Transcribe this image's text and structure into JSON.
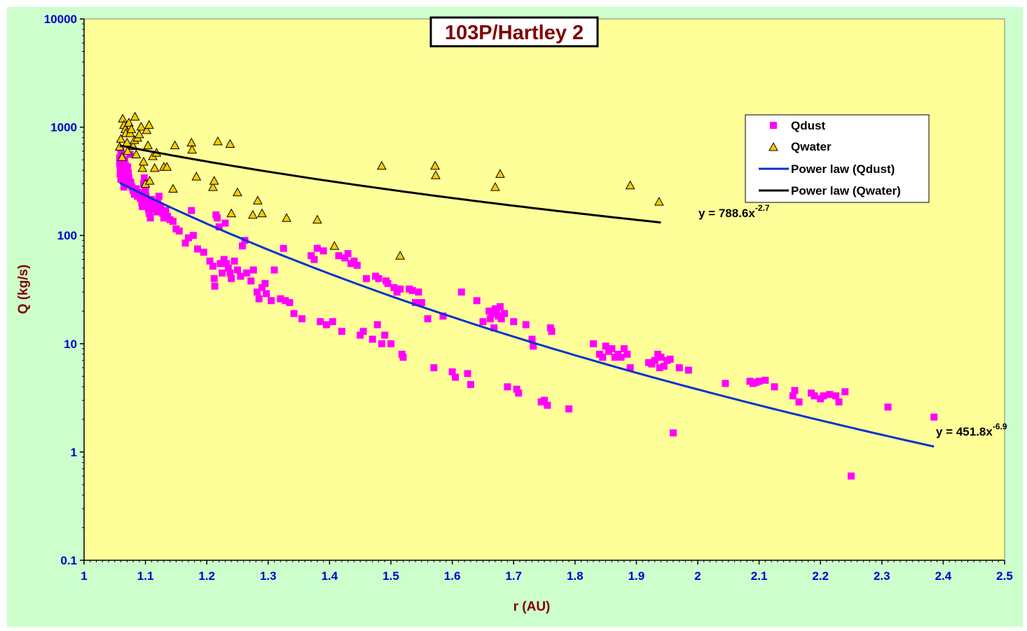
{
  "chart_data": {
    "type": "scatter",
    "title": "103P/Hartley 2",
    "xlabel": "r (AU)",
    "ylabel": "Q (kg/s)",
    "xlim": [
      1,
      2.5
    ],
    "ylim": [
      0.1,
      10000
    ],
    "yscale": "log",
    "x_ticks": [
      "1",
      "1.1",
      "1.2",
      "1.3",
      "1.4",
      "1.5",
      "1.6",
      "1.7",
      "1.8",
      "1.9",
      "2",
      "2.1",
      "2.2",
      "2.3",
      "2.4",
      "2.5"
    ],
    "y_ticks": [
      "0.1",
      "1",
      "10",
      "100",
      "1000",
      "10000"
    ],
    "grid": false,
    "legend_position": "top-right",
    "colors": {
      "plot_bg": "#ffff99",
      "outer_bg": "#ccffcc",
      "qdust": "#ff00ff",
      "qwater_fill": "#ffcc00",
      "fit_dust": "#0033cc",
      "fit_water": "#000000"
    },
    "legend": [
      {
        "label": "Qdust",
        "marker": "square"
      },
      {
        "label": "Qwater",
        "marker": "triangle"
      },
      {
        "label": "Power law (Qdust)",
        "marker": "line"
      },
      {
        "label": "Power law (Qwater)",
        "marker": "line"
      }
    ],
    "series": [
      {
        "name": "Qdust",
        "marker": "square",
        "points": [
          [
            1.058,
            520
          ],
          [
            1.058,
            460
          ],
          [
            1.059,
            410
          ],
          [
            1.059,
            370
          ],
          [
            1.06,
            330
          ],
          [
            1.06,
            600
          ],
          [
            1.061,
            560
          ],
          [
            1.062,
            480
          ],
          [
            1.062,
            430
          ],
          [
            1.063,
            390
          ],
          [
            1.064,
            350
          ],
          [
            1.065,
            310
          ],
          [
            1.065,
            280
          ],
          [
            1.066,
            500
          ],
          [
            1.067,
            450
          ],
          [
            1.068,
            400
          ],
          [
            1.069,
            360
          ],
          [
            1.07,
            330
          ],
          [
            1.07,
            300
          ],
          [
            1.071,
            430
          ],
          [
            1.072,
            380
          ],
          [
            1.073,
            340
          ],
          [
            1.075,
            560
          ],
          [
            1.076,
            310
          ],
          [
            1.078,
            280
          ],
          [
            1.08,
            260
          ],
          [
            1.082,
            240
          ],
          [
            1.085,
            270
          ],
          [
            1.087,
            230
          ],
          [
            1.09,
            250
          ],
          [
            1.092,
            220
          ],
          [
            1.094,
            200
          ],
          [
            1.095,
            185
          ],
          [
            1.097,
            300
          ],
          [
            1.098,
            340
          ],
          [
            1.1,
            260
          ],
          [
            1.101,
            230
          ],
          [
            1.103,
            200
          ],
          [
            1.105,
            175
          ],
          [
            1.106,
            160
          ],
          [
            1.108,
            145
          ],
          [
            1.11,
            215
          ],
          [
            1.112,
            190
          ],
          [
            1.115,
            175
          ],
          [
            1.118,
            165
          ],
          [
            1.12,
            200
          ],
          [
            1.122,
            230
          ],
          [
            1.125,
            185
          ],
          [
            1.128,
            160
          ],
          [
            1.13,
            145
          ],
          [
            1.133,
            170
          ],
          [
            1.136,
            150
          ],
          [
            1.14,
            140
          ],
          [
            1.145,
            135
          ],
          [
            1.15,
            115
          ],
          [
            1.155,
            110
          ],
          [
            1.165,
            85
          ],
          [
            1.17,
            95
          ],
          [
            1.175,
            170
          ],
          [
            1.178,
            100
          ],
          [
            1.185,
            75
          ],
          [
            1.195,
            70
          ],
          [
            1.205,
            58
          ],
          [
            1.21,
            52
          ],
          [
            1.212,
            40
          ],
          [
            1.213,
            34
          ],
          [
            1.215,
            155
          ],
          [
            1.217,
            145
          ],
          [
            1.22,
            120
          ],
          [
            1.222,
            55
          ],
          [
            1.225,
            45
          ],
          [
            1.228,
            60
          ],
          [
            1.23,
            130
          ],
          [
            1.232,
            55
          ],
          [
            1.235,
            50
          ],
          [
            1.238,
            45
          ],
          [
            1.24,
            40
          ],
          [
            1.245,
            58
          ],
          [
            1.25,
            48
          ],
          [
            1.255,
            42
          ],
          [
            1.258,
            80
          ],
          [
            1.262,
            90
          ],
          [
            1.265,
            45
          ],
          [
            1.272,
            38
          ],
          [
            1.276,
            48
          ],
          [
            1.282,
            30
          ],
          [
            1.285,
            26
          ],
          [
            1.29,
            33
          ],
          [
            1.295,
            36
          ],
          [
            1.297,
            29
          ],
          [
            1.305,
            25
          ],
          [
            1.31,
            48
          ],
          [
            1.32,
            26
          ],
          [
            1.325,
            76
          ],
          [
            1.328,
            25
          ],
          [
            1.335,
            24
          ],
          [
            1.342,
            19
          ],
          [
            1.355,
            17
          ],
          [
            1.37,
            65
          ],
          [
            1.375,
            60
          ],
          [
            1.38,
            76
          ],
          [
            1.385,
            16
          ],
          [
            1.39,
            72
          ],
          [
            1.395,
            15
          ],
          [
            1.405,
            16
          ],
          [
            1.415,
            65
          ],
          [
            1.42,
            13
          ],
          [
            1.425,
            62
          ],
          [
            1.43,
            68
          ],
          [
            1.435,
            55
          ],
          [
            1.44,
            58
          ],
          [
            1.445,
            53
          ],
          [
            1.45,
            12
          ],
          [
            1.455,
            13
          ],
          [
            1.46,
            40
          ],
          [
            1.47,
            11
          ],
          [
            1.475,
            42
          ],
          [
            1.478,
            15
          ],
          [
            1.48,
            40
          ],
          [
            1.485,
            10
          ],
          [
            1.49,
            12
          ],
          [
            1.492,
            38
          ],
          [
            1.495,
            36
          ],
          [
            1.5,
            10
          ],
          [
            1.505,
            33
          ],
          [
            1.51,
            30
          ],
          [
            1.515,
            32
          ],
          [
            1.518,
            8
          ],
          [
            1.52,
            7.5
          ],
          [
            1.53,
            32
          ],
          [
            1.535,
            31
          ],
          [
            1.54,
            24
          ],
          [
            1.545,
            30
          ],
          [
            1.55,
            24
          ],
          [
            1.56,
            17
          ],
          [
            1.57,
            6
          ],
          [
            1.585,
            18
          ],
          [
            1.6,
            5.5
          ],
          [
            1.605,
            4.9
          ],
          [
            1.615,
            30
          ],
          [
            1.625,
            5.3
          ],
          [
            1.63,
            4.2
          ],
          [
            1.64,
            25
          ],
          [
            1.65,
            16
          ],
          [
            1.66,
            20
          ],
          [
            1.662,
            17
          ],
          [
            1.665,
            19
          ],
          [
            1.668,
            14
          ],
          [
            1.67,
            21
          ],
          [
            1.672,
            20
          ],
          [
            1.675,
            18
          ],
          [
            1.678,
            22
          ],
          [
            1.68,
            17
          ],
          [
            1.685,
            19
          ],
          [
            1.69,
            4
          ],
          [
            1.7,
            16
          ],
          [
            1.705,
            3.8
          ],
          [
            1.708,
            3.5
          ],
          [
            1.72,
            15
          ],
          [
            1.73,
            11
          ],
          [
            1.732,
            9.5
          ],
          [
            1.745,
            2.9
          ],
          [
            1.75,
            3
          ],
          [
            1.755,
            2.7
          ],
          [
            1.76,
            14
          ],
          [
            1.762,
            13
          ],
          [
            1.79,
            2.5
          ],
          [
            1.83,
            10
          ],
          [
            1.84,
            8
          ],
          [
            1.845,
            7.5
          ],
          [
            1.85,
            9.5
          ],
          [
            1.855,
            8.5
          ],
          [
            1.86,
            9
          ],
          [
            1.865,
            7.5
          ],
          [
            1.87,
            8
          ],
          [
            1.875,
            7.5
          ],
          [
            1.88,
            9
          ],
          [
            1.885,
            8
          ],
          [
            1.89,
            6
          ],
          [
            1.92,
            6.7
          ],
          [
            1.925,
            6.5
          ],
          [
            1.93,
            7
          ],
          [
            1.935,
            8
          ],
          [
            1.938,
            6
          ],
          [
            1.94,
            7.5
          ],
          [
            1.945,
            6.2
          ],
          [
            1.95,
            7
          ],
          [
            1.955,
            7.2
          ],
          [
            1.96,
            1.5
          ],
          [
            1.97,
            6
          ],
          [
            1.985,
            5.7
          ],
          [
            2.045,
            4.3
          ],
          [
            2.085,
            4.5
          ],
          [
            2.09,
            4.3
          ],
          [
            2.095,
            4.4
          ],
          [
            2.1,
            4.5
          ],
          [
            2.11,
            4.6
          ],
          [
            2.125,
            4
          ],
          [
            2.155,
            3.3
          ],
          [
            2.158,
            3.7
          ],
          [
            2.165,
            2.9
          ],
          [
            2.185,
            3.5
          ],
          [
            2.19,
            3.3
          ],
          [
            2.2,
            3.1
          ],
          [
            2.205,
            3.3
          ],
          [
            2.215,
            3.4
          ],
          [
            2.225,
            3.3
          ],
          [
            2.23,
            2.9
          ],
          [
            2.24,
            3.6
          ],
          [
            2.25,
            0.6
          ],
          [
            2.31,
            2.6
          ],
          [
            2.385,
            2.1
          ]
        ]
      },
      {
        "name": "Qwater",
        "marker": "triangle",
        "points": [
          [
            1.058,
            660
          ],
          [
            1.06,
            780
          ],
          [
            1.062,
            530
          ],
          [
            1.063,
            1200
          ],
          [
            1.065,
            1050
          ],
          [
            1.067,
            960
          ],
          [
            1.068,
            880
          ],
          [
            1.07,
            720
          ],
          [
            1.071,
            600
          ],
          [
            1.073,
            1100
          ],
          [
            1.075,
            880
          ],
          [
            1.077,
            960
          ],
          [
            1.08,
            670
          ],
          [
            1.082,
            760
          ],
          [
            1.083,
            1250
          ],
          [
            1.085,
            560
          ],
          [
            1.087,
            800
          ],
          [
            1.09,
            860
          ],
          [
            1.093,
            1010
          ],
          [
            1.095,
            420
          ],
          [
            1.097,
            480
          ],
          [
            1.1,
            300
          ],
          [
            1.102,
            940
          ],
          [
            1.104,
            680
          ],
          [
            1.106,
            1050
          ],
          [
            1.107,
            320
          ],
          [
            1.112,
            540
          ],
          [
            1.115,
            420
          ],
          [
            1.118,
            580
          ],
          [
            1.13,
            430
          ],
          [
            1.135,
            430
          ],
          [
            1.145,
            270
          ],
          [
            1.148,
            680
          ],
          [
            1.175,
            720
          ],
          [
            1.176,
            620
          ],
          [
            1.183,
            350
          ],
          [
            1.21,
            280
          ],
          [
            1.212,
            320
          ],
          [
            1.218,
            740
          ],
          [
            1.238,
            700
          ],
          [
            1.24,
            160
          ],
          [
            1.25,
            250
          ],
          [
            1.275,
            155
          ],
          [
            1.283,
            210
          ],
          [
            1.29,
            160
          ],
          [
            1.33,
            145
          ],
          [
            1.38,
            140
          ],
          [
            1.408,
            80
          ],
          [
            1.485,
            440
          ],
          [
            1.515,
            65
          ],
          [
            1.572,
            440
          ],
          [
            1.573,
            360
          ],
          [
            1.67,
            280
          ],
          [
            1.678,
            370
          ],
          [
            1.89,
            290
          ],
          [
            1.937,
            205
          ]
        ]
      },
      {
        "name": "Power law (Qdust)",
        "type": "line",
        "equation": "y = 451.8x-6.9",
        "coef": 451.8,
        "exponent": -6.9,
        "x_range": [
          1.058,
          2.385
        ]
      },
      {
        "name": "Power law (Qwater)",
        "type": "line",
        "equation": "y = 788.6x-2.7",
        "coef": 788.6,
        "exponent": -2.7,
        "x_range": [
          1.058,
          1.94
        ]
      }
    ],
    "annotations": [
      {
        "base": "y = 788.6x",
        "sup": "-2.7",
        "near": "end of water fit"
      },
      {
        "base": "y = 451.8x",
        "sup": "-6.9",
        "near": "end of dust fit"
      }
    ]
  }
}
